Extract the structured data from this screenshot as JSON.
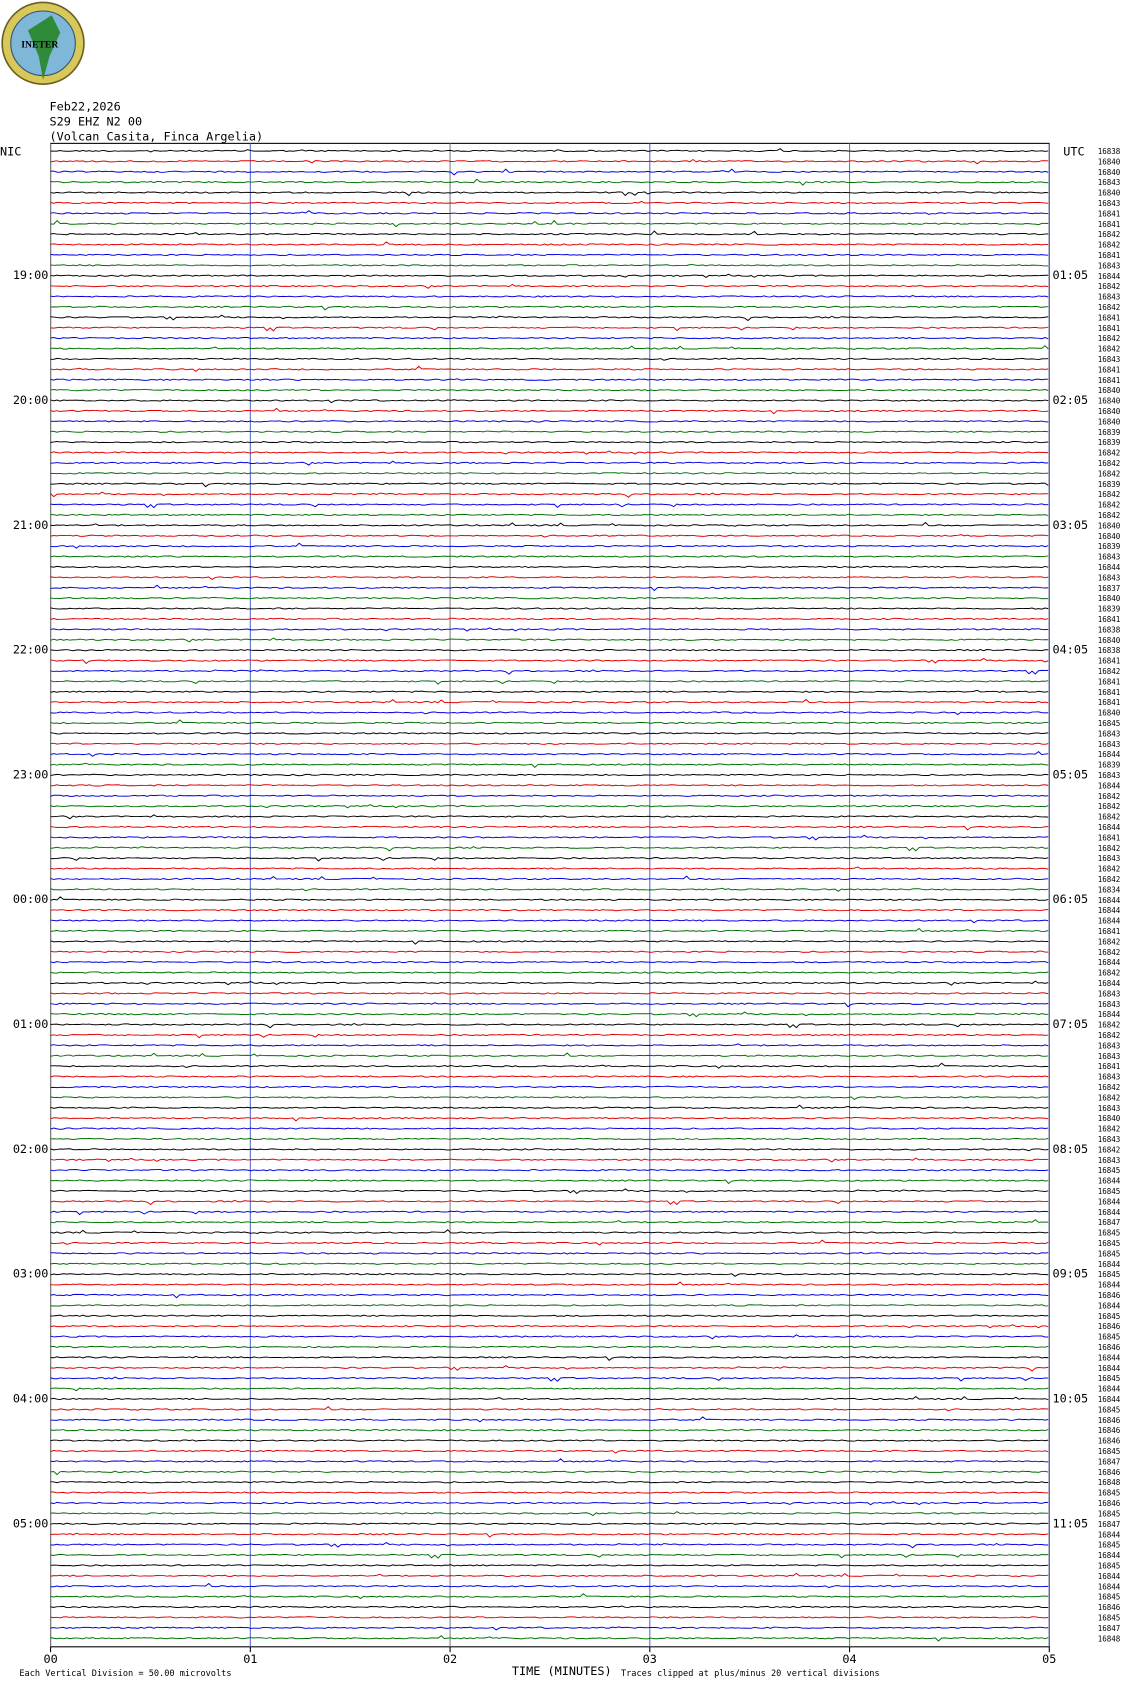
{
  "chart_data": {
    "type": "seismogram",
    "logo_text": "INETER",
    "title_lines": [
      "Feb22,2026",
      "S29 EHZ N2 00",
      "(Volcan Casita, Finca Argelia)"
    ],
    "left_zone": "NIC",
    "right_zone": "UTC",
    "trace_colors": [
      "#000000",
      "#e00000",
      "#0000e0",
      "#007000"
    ],
    "nic_hours": [
      "19:00",
      "20:00",
      "21:00",
      "22:00",
      "23:00",
      "00:00",
      "01:00",
      "02:00",
      "03:00",
      "04:00",
      "05:00"
    ],
    "utc_hours": [
      "01:05",
      "02:05",
      "03:05",
      "04:05",
      "05:05",
      "06:05",
      "07:05",
      "08:05",
      "09:05",
      "10:05",
      "11:05"
    ],
    "row_values": [
      16838,
      16840,
      16840,
      16843,
      16840,
      16843,
      16841,
      16841,
      16842,
      16842,
      16841,
      16843,
      16844,
      16842,
      16843,
      16842,
      16841,
      16841,
      16842,
      16842,
      16843,
      16841,
      16841,
      16840,
      16840,
      16840,
      16840,
      16839,
      16839,
      16842,
      16842,
      16842,
      16839,
      16842,
      16842,
      16842,
      16840,
      16840,
      16839,
      16843,
      16844,
      16843,
      16837,
      16840,
      16839,
      16841,
      16838,
      16840,
      16838,
      16841,
      16842,
      16841,
      16841,
      16841,
      16840,
      16845,
      16843,
      16843,
      16844,
      16839,
      16843,
      16844,
      16842,
      16842,
      16842,
      16844,
      16841,
      16842,
      16843,
      16842,
      16842,
      16834,
      16844,
      16844,
      16844,
      16841,
      16842,
      16842,
      16844,
      16842,
      16844,
      16843,
      16843,
      16844,
      16842,
      16842,
      16843,
      16843,
      16841,
      16843,
      16842,
      16842,
      16843,
      16840,
      16842,
      16843,
      16842,
      16843,
      16845,
      16844,
      16845,
      16844,
      16844,
      16847,
      16845,
      16845,
      16845,
      16844,
      16845,
      16844,
      16846,
      16844,
      16845,
      16846,
      16845,
      16846,
      16844,
      16844,
      16845,
      16844,
      16844,
      16845,
      16846,
      16846,
      16846,
      16845,
      16847,
      16846,
      16848,
      16845,
      16846,
      16845,
      16847,
      16844,
      16845,
      16844,
      16845,
      16844,
      16844,
      16845,
      16846,
      16845,
      16847,
      16848
    ],
    "xlim": [
      0,
      5
    ],
    "xticks": [
      {
        "value": 0,
        "label": "00"
      },
      {
        "value": 1,
        "label": "01"
      },
      {
        "value": 2,
        "label": "02"
      },
      {
        "value": 3,
        "label": "03"
      },
      {
        "value": 4,
        "label": "04"
      },
      {
        "value": 5,
        "label": "05"
      }
    ],
    "xlabel": "TIME (MINUTES)",
    "scale_note": "Each Vertical Division =   50.00 microvolts",
    "clip_note": "Traces clipped at plus/minus 20 vertical divisions"
  }
}
